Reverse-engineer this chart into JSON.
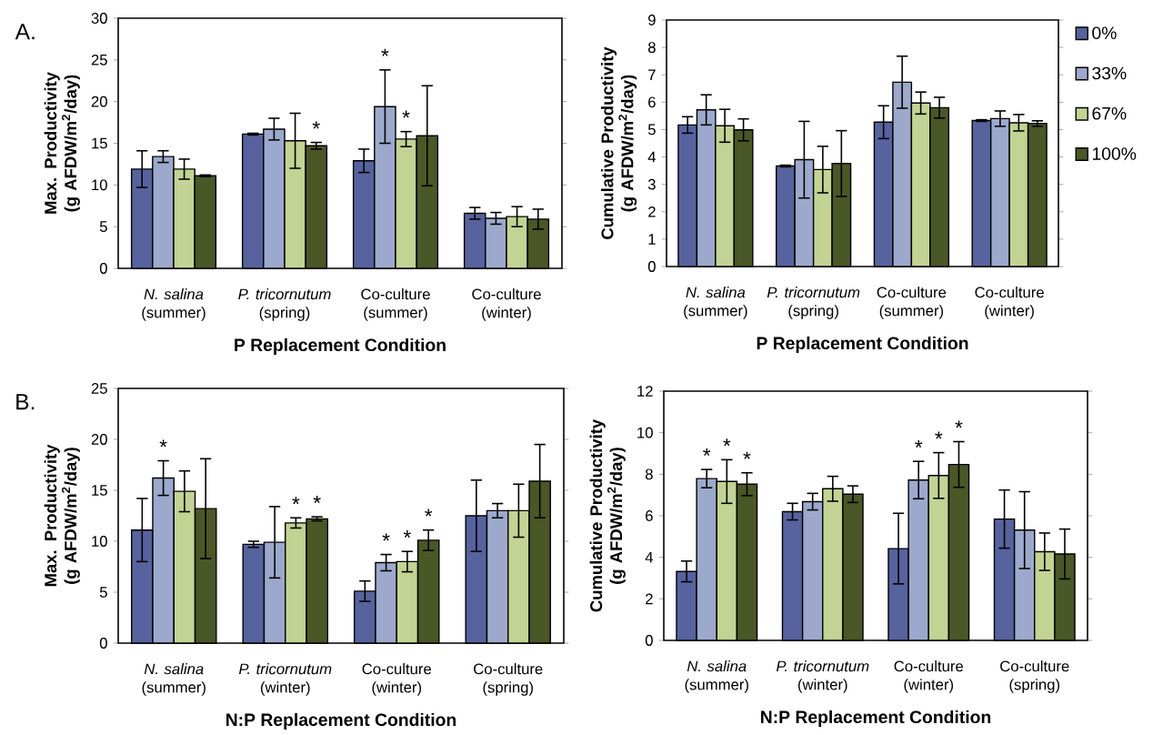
{
  "chart_data": [
    {
      "type": "bar",
      "xlabel": "P Replacement Condition",
      "ylabel": "Max. Productivity (g AFDW/m$^{2}$/day)",
      "annotations": [
        "A."
      ],
      "categories": [
        "*N. salina* (summer)",
        "*P. tricornutum* (spring)",
        "Co-culture (summer)",
        "Co-culture (winter)"
      ],
      "ylim": [
        0,
        30
      ],
      "yticks": [
        0,
        5,
        10,
        15,
        20,
        25,
        30
      ],
      "series": [
        {
          "color": "#56639e",
          "values": [
            11.9,
            16.1,
            12.9,
            6.6
          ],
          "errors": [
            2.2,
            0.1,
            1.4,
            0.7
          ]
        },
        {
          "color": "#9da9cc",
          "values": [
            13.4,
            16.7,
            19.4,
            6.0
          ],
          "errors": [
            0.7,
            1.3,
            4.4,
            0.7
          ],
          "value_labels": [
            null,
            null,
            "*",
            null
          ]
        },
        {
          "color": "#c2d394",
          "values": [
            11.9,
            15.3,
            15.5,
            6.2
          ],
          "errors": [
            1.2,
            3.3,
            0.9,
            1.2
          ],
          "value_labels": [
            null,
            null,
            "*",
            null
          ]
        },
        {
          "color": "#4a5726",
          "values": [
            11.1,
            14.7,
            15.9,
            5.9
          ],
          "errors": [
            0.1,
            0.4,
            6.0,
            1.2
          ],
          "value_labels": [
            null,
            "*",
            null,
            null
          ]
        }
      ]
    },
    {
      "type": "bar",
      "xlabel": "P Replacement Condition",
      "ylabel": "Cumulative Productivity (g AFDW/m$^{2}$/day)",
      "legend": "right",
      "categories": [
        "*N. salina* (summer)",
        "*P. tricornutum* (spring)",
        "Co-culture (summer)",
        "Co-culture (winter)"
      ],
      "ylim": [
        0,
        9
      ],
      "yticks": [
        0,
        1,
        2,
        3,
        4,
        5,
        6,
        7,
        8,
        9
      ],
      "series": [
        {
          "name": "0%",
          "color": "#56639e",
          "values": [
            5.17,
            3.67,
            5.27,
            5.33
          ],
          "errors": [
            0.3,
            0.03,
            0.6,
            0.03
          ]
        },
        {
          "name": "33%",
          "color": "#9da9cc",
          "values": [
            5.72,
            3.9,
            6.73,
            5.4
          ],
          "errors": [
            0.55,
            1.4,
            0.95,
            0.28
          ]
        },
        {
          "name": "67%",
          "color": "#c2d394",
          "values": [
            5.14,
            3.54,
            5.97,
            5.25
          ],
          "errors": [
            0.6,
            0.85,
            0.4,
            0.3
          ]
        },
        {
          "name": "100%",
          "color": "#4a5726",
          "values": [
            4.99,
            3.76,
            5.8,
            5.22
          ],
          "errors": [
            0.4,
            1.2,
            0.38,
            0.1
          ]
        }
      ]
    },
    {
      "type": "bar",
      "xlabel": "N:P Replacement Condition",
      "ylabel": "Max. Productivity (g AFDW/m$^{2}$/day)",
      "annotations": [
        "B."
      ],
      "categories": [
        "*N. salina* (summer)",
        "*P. tricornutum* (winter)",
        "Co-culture (winter)",
        "Co-culture (spring)"
      ],
      "ylim": [
        0,
        25
      ],
      "yticks": [
        0,
        5,
        10,
        15,
        20,
        25
      ],
      "series": [
        {
          "color": "#56639e",
          "values": [
            11.1,
            9.7,
            5.1,
            12.5
          ],
          "errors": [
            3.1,
            0.3,
            1.0,
            3.5
          ]
        },
        {
          "color": "#9da9cc",
          "values": [
            16.2,
            9.9,
            7.9,
            13.0
          ],
          "errors": [
            1.7,
            3.5,
            0.8,
            0.7
          ],
          "value_labels": [
            "*",
            null,
            "*",
            null
          ]
        },
        {
          "color": "#c2d394",
          "values": [
            14.9,
            11.8,
            8.0,
            13.0
          ],
          "errors": [
            2.0,
            0.5,
            1.0,
            2.6
          ],
          "value_labels": [
            null,
            "*",
            "*",
            null
          ]
        },
        {
          "color": "#4a5726",
          "values": [
            13.2,
            12.2,
            10.1,
            15.9
          ],
          "errors": [
            4.9,
            0.2,
            1.0,
            3.6
          ],
          "value_labels": [
            null,
            "*",
            "*",
            null
          ]
        }
      ]
    },
    {
      "type": "bar",
      "xlabel": "N:P Replacement Condition",
      "ylabel": "Cumulative Productivity (g AFDW/m$^{2}$/day)",
      "categories": [
        "*N. salina* (summer)",
        "*P. tricornutum* (winter)",
        "Co-culture (winter)",
        "Co-culture (spring)"
      ],
      "ylim": [
        0,
        12
      ],
      "yticks": [
        0,
        2,
        4,
        6,
        8,
        10,
        12
      ],
      "series": [
        {
          "color": "#56639e",
          "values": [
            3.32,
            6.2,
            4.42,
            5.84
          ],
          "errors": [
            0.5,
            0.4,
            1.7,
            1.4
          ]
        },
        {
          "color": "#9da9cc",
          "values": [
            7.79,
            6.68,
            7.72,
            5.31
          ],
          "errors": [
            0.44,
            0.4,
            0.9,
            1.85
          ],
          "value_labels": [
            "*",
            null,
            "*",
            null
          ]
        },
        {
          "color": "#c2d394",
          "values": [
            7.65,
            7.3,
            7.94,
            4.27
          ],
          "errors": [
            1.05,
            0.6,
            1.1,
            0.9
          ],
          "value_labels": [
            "*",
            null,
            "*",
            null
          ]
        },
        {
          "color": "#4a5726",
          "values": [
            7.52,
            7.04,
            8.47,
            4.16
          ],
          "errors": [
            0.55,
            0.4,
            1.1,
            1.2
          ],
          "value_labels": [
            "*",
            null,
            "*",
            null
          ]
        }
      ]
    }
  ]
}
